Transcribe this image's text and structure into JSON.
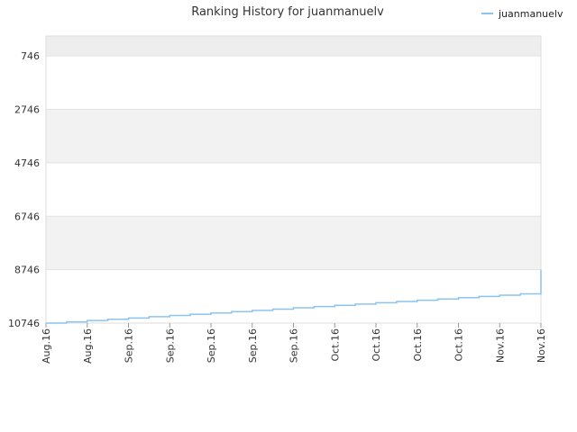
{
  "chart_data": {
    "type": "line",
    "title": "Ranking History for juanmanuelv",
    "xlabel": "",
    "ylabel": "",
    "y_inverted": true,
    "ylim": [
      10746,
      0
    ],
    "y_ticks": [
      746,
      2746,
      4746,
      6746,
      8746,
      10746
    ],
    "x_tick_labels": [
      "Aug.16",
      "Aug.16",
      "Sep.16",
      "Sep.16",
      "Sep.16",
      "Sep.16",
      "Sep.16",
      "Oct.16",
      "Oct.16",
      "Oct.16",
      "Oct.16",
      "Nov.16",
      "Nov.16"
    ],
    "grid": true,
    "legend_position": "top-right",
    "colors": {
      "line": "#8cc4f0",
      "band_shade": "#f2f2f2",
      "band_top": "#eeeeee",
      "grid": "#e2e2e2"
    },
    "series": [
      {
        "name": "juanmanuelv",
        "values": [
          10746,
          10698,
          10650,
          10603,
          10555,
          10508,
          10460,
          10413,
          10365,
          10318,
          10270,
          10223,
          10175,
          10128,
          10080,
          10033,
          9985,
          9938,
          9890,
          9843,
          9795,
          9748,
          9700,
          9653,
          9080,
          8746
        ]
      }
    ]
  }
}
